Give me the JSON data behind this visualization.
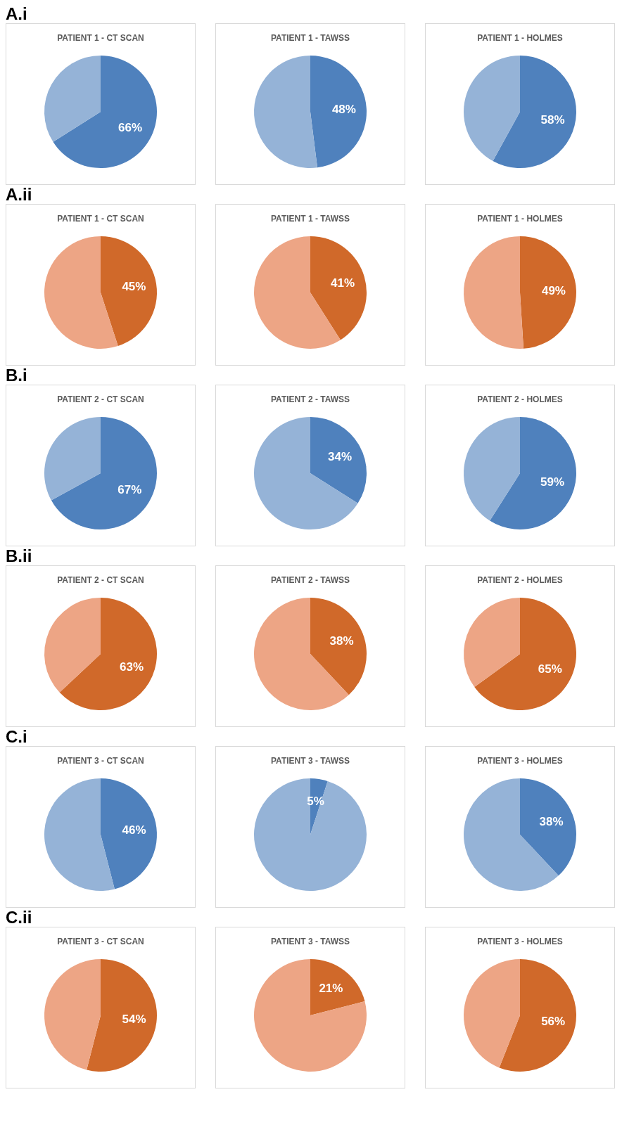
{
  "chart_data": [
    {
      "type": "pie",
      "title": "PATIENT 1 - CT SCAN",
      "annotations": [
        "A.i"
      ],
      "categories": [
        null,
        null
      ],
      "values": [
        66,
        34
      ],
      "colors": [
        "#4f81bd",
        "#95b3d7"
      ],
      "value_labels": [
        "66%",
        null
      ]
    },
    {
      "type": "pie",
      "title": "PATIENT 1 - TAWSS",
      "categories": [
        null,
        null
      ],
      "values": [
        48,
        52
      ],
      "colors": [
        "#4f81bd",
        "#95b3d7"
      ],
      "value_labels": [
        "48%",
        null
      ]
    },
    {
      "type": "pie",
      "title": "PATIENT 1 - HOLMES",
      "categories": [
        null,
        null
      ],
      "values": [
        58,
        42
      ],
      "colors": [
        "#4f81bd",
        "#95b3d7"
      ],
      "value_labels": [
        "58%",
        null
      ]
    },
    {
      "type": "pie",
      "title": "PATIENT 1 - CT SCAN",
      "annotations": [
        "A.ii"
      ],
      "categories": [
        null,
        null
      ],
      "values": [
        45,
        55
      ],
      "colors": [
        "#d0692a",
        "#eda585"
      ],
      "value_labels": [
        "45%",
        null
      ]
    },
    {
      "type": "pie",
      "title": "PATIENT 1 - TAWSS",
      "categories": [
        null,
        null
      ],
      "values": [
        41,
        59
      ],
      "colors": [
        "#d0692a",
        "#eda585"
      ],
      "value_labels": [
        "41%",
        null
      ]
    },
    {
      "type": "pie",
      "title": "PATIENT 1 - HOLMES",
      "categories": [
        null,
        null
      ],
      "values": [
        49,
        51
      ],
      "colors": [
        "#d0692a",
        "#eda585"
      ],
      "value_labels": [
        "49%",
        null
      ]
    },
    {
      "type": "pie",
      "title": "PATIENT 2 - CT SCAN",
      "annotations": [
        "B.i"
      ],
      "categories": [
        null,
        null
      ],
      "values": [
        67,
        33
      ],
      "colors": [
        "#4f81bd",
        "#95b3d7"
      ],
      "value_labels": [
        "67%",
        null
      ]
    },
    {
      "type": "pie",
      "title": "PATIENT 2 - TAWSS",
      "categories": [
        null,
        null
      ],
      "values": [
        34,
        66
      ],
      "colors": [
        "#4f81bd",
        "#95b3d7"
      ],
      "value_labels": [
        "34%",
        null
      ]
    },
    {
      "type": "pie",
      "title": "PATIENT 2 - HOLMES",
      "categories": [
        null,
        null
      ],
      "values": [
        59,
        41
      ],
      "colors": [
        "#4f81bd",
        "#95b3d7"
      ],
      "value_labels": [
        "59%",
        null
      ]
    },
    {
      "type": "pie",
      "title": "PATIENT 2 - CT SCAN",
      "annotations": [
        "B.ii"
      ],
      "categories": [
        null,
        null
      ],
      "values": [
        63,
        37
      ],
      "colors": [
        "#d0692a",
        "#eda585"
      ],
      "value_labels": [
        "63%",
        null
      ]
    },
    {
      "type": "pie",
      "title": "PATIENT 2 - TAWSS",
      "categories": [
        null,
        null
      ],
      "values": [
        38,
        62
      ],
      "colors": [
        "#d0692a",
        "#eda585"
      ],
      "value_labels": [
        "38%",
        null
      ]
    },
    {
      "type": "pie",
      "title": "PATIENT 2 - HOLMES",
      "categories": [
        null,
        null
      ],
      "values": [
        65,
        35
      ],
      "colors": [
        "#d0692a",
        "#eda585"
      ],
      "value_labels": [
        "65%",
        null
      ]
    },
    {
      "type": "pie",
      "title": "PATIENT 3 - CT SCAN",
      "annotations": [
        "C.i"
      ],
      "categories": [
        null,
        null
      ],
      "values": [
        46,
        54
      ],
      "colors": [
        "#4f81bd",
        "#95b3d7"
      ],
      "value_labels": [
        "46%",
        null
      ]
    },
    {
      "type": "pie",
      "title": "PATIENT 3 - TAWSS",
      "categories": [
        null,
        null
      ],
      "values": [
        5,
        95
      ],
      "colors": [
        "#4f81bd",
        "#95b3d7"
      ],
      "value_labels": [
        "5%",
        null
      ]
    },
    {
      "type": "pie",
      "title": "PATIENT 3 - HOLMES",
      "categories": [
        null,
        null
      ],
      "values": [
        38,
        62
      ],
      "colors": [
        "#4f81bd",
        "#95b3d7"
      ],
      "value_labels": [
        "38%",
        null
      ]
    },
    {
      "type": "pie",
      "title": "PATIENT 3 - CT SCAN",
      "annotations": [
        "C.ii"
      ],
      "categories": [
        null,
        null
      ],
      "values": [
        54,
        46
      ],
      "colors": [
        "#d0692a",
        "#eda585"
      ],
      "value_labels": [
        "54%",
        null
      ]
    },
    {
      "type": "pie",
      "title": "PATIENT 3 - TAWSS",
      "categories": [
        null,
        null
      ],
      "values": [
        21,
        79
      ],
      "colors": [
        "#d0692a",
        "#eda585"
      ],
      "value_labels": [
        "21%",
        null
      ]
    },
    {
      "type": "pie",
      "title": "PATIENT 3 - HOLMES",
      "categories": [
        null,
        null
      ],
      "values": [
        56,
        44
      ],
      "colors": [
        "#d0692a",
        "#eda585"
      ],
      "value_labels": [
        "56%",
        null
      ]
    }
  ]
}
